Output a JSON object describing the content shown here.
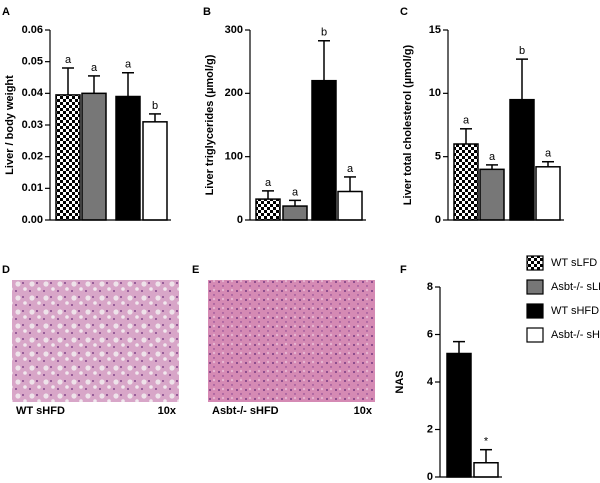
{
  "chart_data": [
    {
      "type": "bar",
      "panel": "A",
      "ylabel": "Liver  / body weight",
      "values": [
        0.0395,
        0.04,
        0.039,
        0.031
      ],
      "errors": [
        0.0085,
        0.0055,
        0.0075,
        0.0025
      ],
      "colors": [
        "checker",
        "#777777",
        "#000000",
        "#ffffff"
      ],
      "annotations": [
        "a",
        "a",
        "a",
        "b"
      ],
      "ylim": [
        0,
        0.06
      ],
      "yticks": [
        {
          "value": 0,
          "label": "0.00"
        },
        0.01,
        0.02,
        0.03,
        0.04,
        0.05,
        0.06
      ],
      "grid": false
    },
    {
      "type": "bar",
      "panel": "B",
      "ylabel": "Liver triglycerides (µmol/g)",
      "values": [
        33,
        22,
        220,
        45
      ],
      "errors": [
        13,
        9,
        63,
        23
      ],
      "colors": [
        "checker",
        "#777777",
        "#000000",
        "#ffffff"
      ],
      "annotations": [
        "a",
        "a",
        "b",
        "a"
      ],
      "ylim": [
        0,
        300
      ],
      "yticks": [
        0,
        100,
        200,
        300
      ],
      "grid": false
    },
    {
      "type": "bar",
      "panel": "C",
      "ylabel": "Liver total cholesterol (µmol/g)",
      "values": [
        6,
        4,
        9.5,
        4.2
      ],
      "errors": [
        1.2,
        0.35,
        3.2,
        0.4
      ],
      "colors": [
        "checker",
        "#777777",
        "#000000",
        "#ffffff"
      ],
      "annotations": [
        "a",
        "a",
        "b",
        "a"
      ],
      "ylim": [
        0,
        15
      ],
      "yticks": [
        0,
        5,
        10,
        15
      ],
      "grid": false
    },
    {
      "type": "bar",
      "panel": "F",
      "ylabel": "NAS",
      "values": [
        5.2,
        0.6
      ],
      "errors": [
        0.5,
        0.55
      ],
      "colors": [
        "#000000",
        "#ffffff"
      ],
      "annotations": [
        null,
        "*"
      ],
      "ylim": [
        0,
        8
      ],
      "yticks": [
        0,
        2,
        4,
        6,
        8
      ],
      "grid": false
    }
  ],
  "images": [
    {
      "panel": "D",
      "caption": "WT sHFD",
      "magnification": "10x"
    },
    {
      "panel": "E",
      "caption": "Asbt-/- sHFD",
      "magnification": "10x"
    }
  ],
  "legend": [
    {
      "name": "WT sLFD",
      "color": "checker"
    },
    {
      "name": "Asbt-/- sLFD",
      "color": "#777777"
    },
    {
      "name": "WT sHFD",
      "color": "#000000"
    },
    {
      "name": "Asbt-/- sHFD",
      "color": "#ffffff"
    }
  ]
}
